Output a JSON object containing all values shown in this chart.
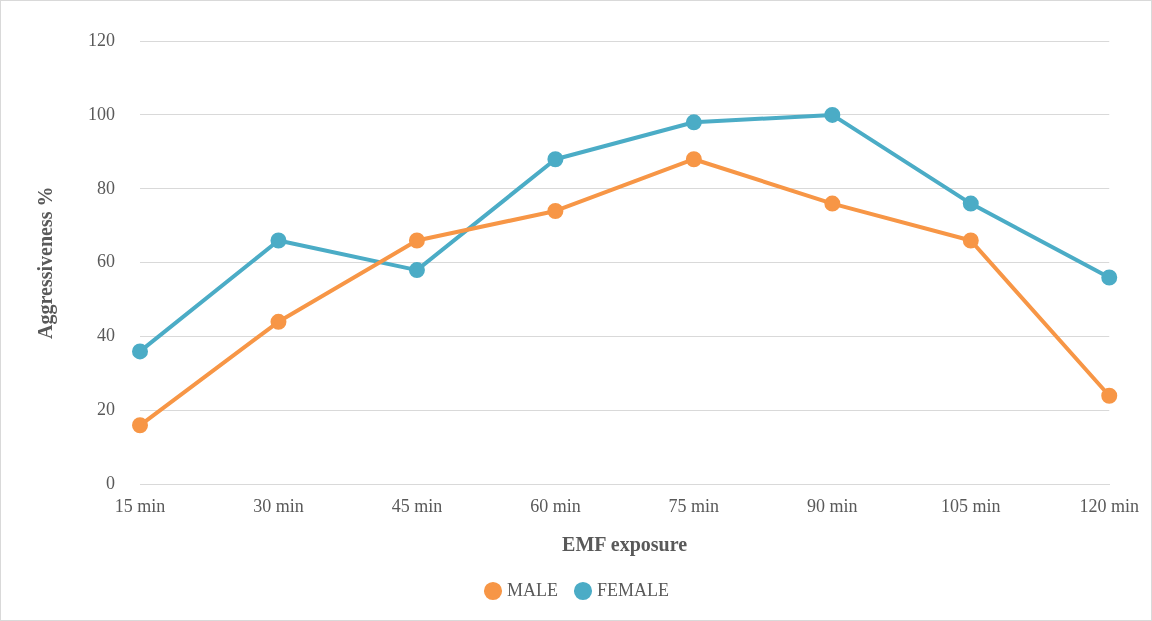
{
  "chart_data": {
    "type": "line",
    "xlabel": "EMF exposure",
    "ylabel": "Aggressiveness %",
    "categories": [
      "15 min",
      "30 min",
      "45 min",
      "60 min",
      "75 min",
      "90 min",
      "105 min",
      "120 min"
    ],
    "series": [
      {
        "name": "MALE",
        "color": "#f79646",
        "values": [
          16,
          44,
          66,
          74,
          88,
          76,
          66,
          24
        ]
      },
      {
        "name": "FEMALE",
        "color": "#4bacc6",
        "values": [
          36,
          66,
          58,
          88,
          98,
          100,
          76,
          56
        ]
      }
    ],
    "ylim": [
      0,
      120
    ],
    "yticks": [
      0,
      20,
      40,
      60,
      80,
      100,
      120
    ],
    "grid": "y",
    "legend": "bottom",
    "marker": "circle",
    "line_style": "solid"
  }
}
